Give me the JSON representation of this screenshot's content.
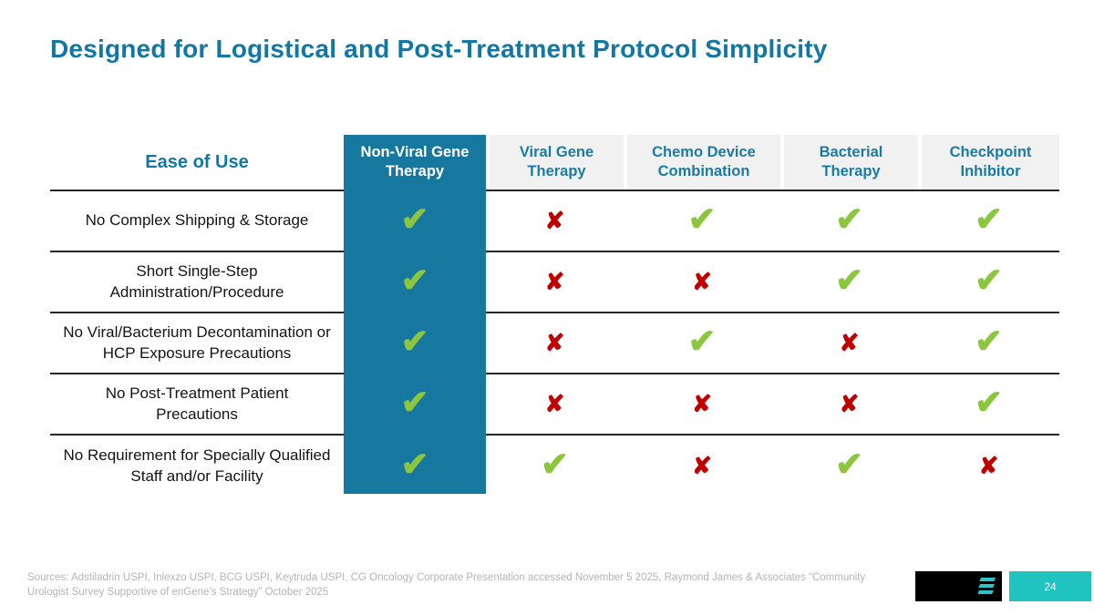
{
  "slide": {
    "title": "Designed for Logistical and Post-Treatment Protocol Simplicity",
    "page_number": "24"
  },
  "table": {
    "row_header_label": "Ease of Use",
    "columns": [
      "Non-Viral Gene Therapy",
      "Viral Gene Therapy",
      "Chemo Device Combination",
      "Bacterial Therapy",
      "Checkpoint Inhibitor"
    ],
    "highlighted_column": "Non-Viral Gene Therapy",
    "rows": [
      {
        "label": "No Complex Shipping & Storage",
        "values": [
          "check",
          "cross",
          "check",
          "check",
          "check"
        ]
      },
      {
        "label": "Short Single-Step Administration/Procedure",
        "values": [
          "check",
          "cross",
          "cross",
          "check",
          "check"
        ]
      },
      {
        "label": "No Viral/Bacterium Decontamination or HCP Exposure Precautions",
        "values": [
          "check",
          "cross",
          "check",
          "cross",
          "check"
        ]
      },
      {
        "label": "No Post-Treatment Patient Precautions",
        "values": [
          "check",
          "cross",
          "cross",
          "cross",
          "check"
        ]
      },
      {
        "label": "No Requirement for Specially Qualified Staff and/or Facility",
        "values": [
          "check",
          "check",
          "cross",
          "check",
          "cross"
        ]
      }
    ],
    "icons": {
      "check": "✔",
      "cross": "✘"
    }
  },
  "footer": {
    "sources": "Sources: Adstiladrin USPI, Inlexzo USPI, BCG USPI, Keytruda USPI, CG Oncology Corporate Presentation accessed November 5 2025, Raymond James & Associates “Community Urologist Survey Supportive of enGene’s Strategy” October 2025"
  },
  "colors": {
    "title_teal": "#1278a3",
    "highlight_column": "#17789f",
    "header_cell_bg": "#f1f1f1",
    "check_green": "#8cc63f",
    "cross_red": "#c00000",
    "page_badge_teal": "#1fc3bf",
    "logo_bg": "#000000",
    "logo_accent": "#2ac4c9"
  }
}
